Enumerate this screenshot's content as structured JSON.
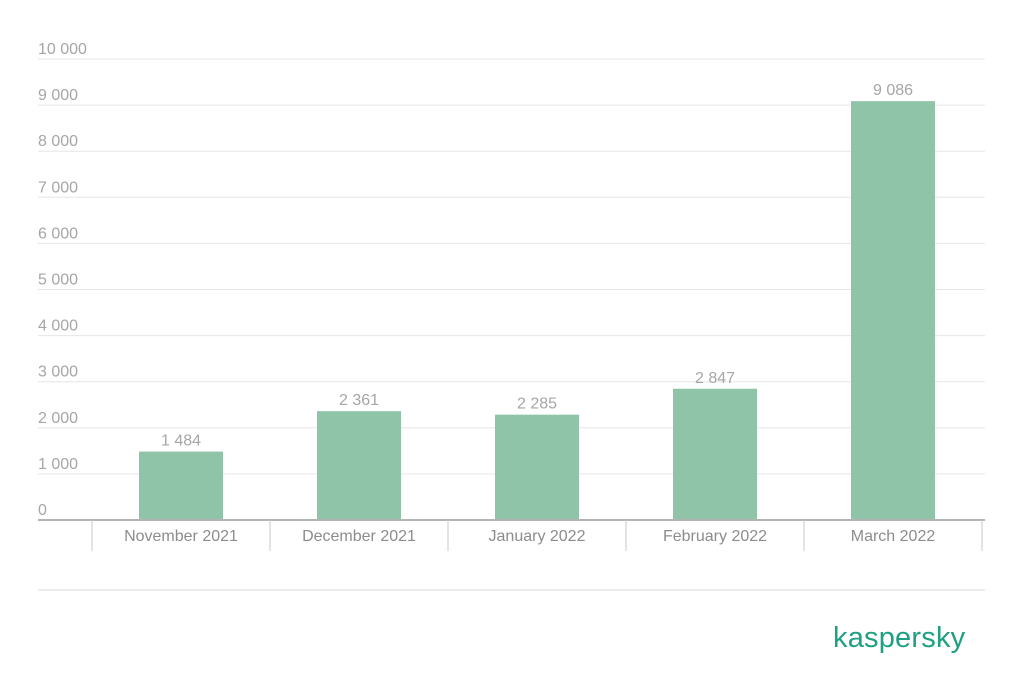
{
  "chart_data": {
    "type": "bar",
    "categories": [
      "November 2021",
      "December 2021",
      "January 2022",
      "February 2022",
      "March 2022"
    ],
    "values": [
      1484,
      2361,
      2285,
      2847,
      9086
    ],
    "value_labels": [
      "1 484",
      "2 361",
      "2 285",
      "2 847",
      "9 086"
    ],
    "yticks": [
      0,
      1000,
      2000,
      3000,
      4000,
      5000,
      6000,
      7000,
      8000,
      9000,
      10000
    ],
    "ytick_labels": [
      "0",
      "1 000",
      "2 000",
      "3 000",
      "4 000",
      "5 000",
      "6 000",
      "7 000",
      "8 000",
      "9 000",
      "10 000"
    ],
    "ylim": [
      0,
      10000
    ],
    "grid": true,
    "bar_color": "#8fc4a8"
  },
  "brand": {
    "logo_text": "kaspersky",
    "logo_color": "#1fa082"
  }
}
